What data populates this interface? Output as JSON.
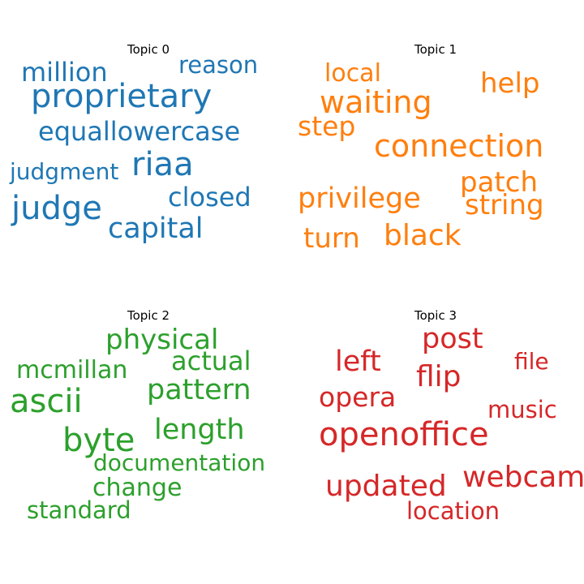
{
  "chart_data": {
    "type": "wordcloud",
    "panels": [
      {
        "title": "Topic 0",
        "color": "#1f77b4",
        "words": [
          "proprietary",
          "judge",
          "riaa",
          "capital",
          "million",
          "equallowercase",
          "reason",
          "judgment",
          "closed"
        ]
      },
      {
        "title": "Topic 1",
        "color": "#ff7f0e",
        "words": [
          "connection",
          "waiting",
          "privilege",
          "help",
          "string",
          "patch",
          "black",
          "turn",
          "step",
          "local"
        ]
      },
      {
        "title": "Topic 2",
        "color": "#2ca02c",
        "words": [
          "ascii",
          "byte",
          "pattern",
          "physical",
          "length",
          "actual",
          "mcmillan",
          "documentation",
          "change",
          "standard"
        ]
      },
      {
        "title": "Topic 3",
        "color": "#d62728",
        "words": [
          "openoffice",
          "webcam",
          "updated",
          "post",
          "flip",
          "left",
          "opera",
          "music",
          "file",
          "location"
        ]
      }
    ]
  }
}
